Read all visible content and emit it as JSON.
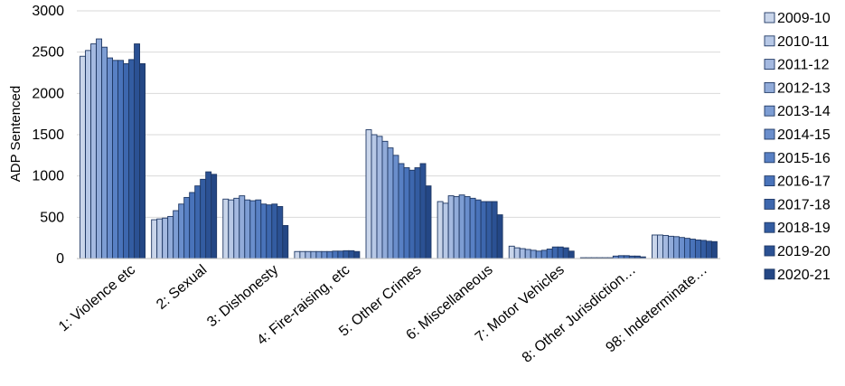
{
  "chart_data": {
    "type": "bar",
    "ylabel": "ADP Sentenced",
    "xlabel": "",
    "ylim": [
      0,
      3000
    ],
    "yticks": [
      0,
      500,
      1000,
      1500,
      2000,
      2500,
      3000
    ],
    "grid": true,
    "legend_position": "right",
    "categories": [
      "1: Violence etc",
      "2: Sexual",
      "3: Dishonesty",
      "4: Fire-raising, etc",
      "5: Other Crimes",
      "6: Miscellaneous",
      "7: Motor Vehicles",
      "8: Other Jurisdiction…",
      "98: Indeterminate…"
    ],
    "series": [
      {
        "name": "2009-10",
        "color": "#c9d5ea",
        "values": [
          2450,
          470,
          720,
          85,
          1560,
          690,
          150,
          10,
          285
        ]
      },
      {
        "name": "2010-11",
        "color": "#b7c8e6",
        "values": [
          2520,
          480,
          710,
          85,
          1500,
          670,
          130,
          10,
          285
        ]
      },
      {
        "name": "2011-12",
        "color": "#a4b9e0",
        "values": [
          2600,
          490,
          730,
          85,
          1480,
          760,
          120,
          10,
          280
        ]
      },
      {
        "name": "2012-13",
        "color": "#91abd9",
        "values": [
          2660,
          510,
          760,
          85,
          1420,
          750,
          110,
          10,
          270
        ]
      },
      {
        "name": "2013-14",
        "color": "#7d9dd3",
        "values": [
          2560,
          580,
          710,
          85,
          1340,
          770,
          100,
          10,
          265
        ]
      },
      {
        "name": "2014-15",
        "color": "#6a8ecc",
        "values": [
          2430,
          660,
          700,
          85,
          1250,
          750,
          90,
          10,
          255
        ]
      },
      {
        "name": "2015-16",
        "color": "#5880c4",
        "values": [
          2400,
          740,
          710,
          85,
          1150,
          730,
          100,
          30,
          245
        ]
      },
      {
        "name": "2016-17",
        "color": "#4973ba",
        "values": [
          2400,
          800,
          660,
          90,
          1100,
          710,
          115,
          35,
          235
        ]
      },
      {
        "name": "2017-18",
        "color": "#3d67ae",
        "values": [
          2360,
          880,
          650,
          90,
          1070,
          690,
          140,
          35,
          225
        ]
      },
      {
        "name": "2018-19",
        "color": "#335ca1",
        "values": [
          2410,
          960,
          660,
          95,
          1100,
          690,
          140,
          30,
          220
        ]
      },
      {
        "name": "2019-20",
        "color": "#2b5193",
        "values": [
          2600,
          1050,
          630,
          95,
          1150,
          690,
          130,
          30,
          210
        ]
      },
      {
        "name": "2020-21",
        "color": "#244785",
        "values": [
          2360,
          1020,
          400,
          85,
          880,
          530,
          90,
          20,
          205
        ]
      }
    ]
  }
}
